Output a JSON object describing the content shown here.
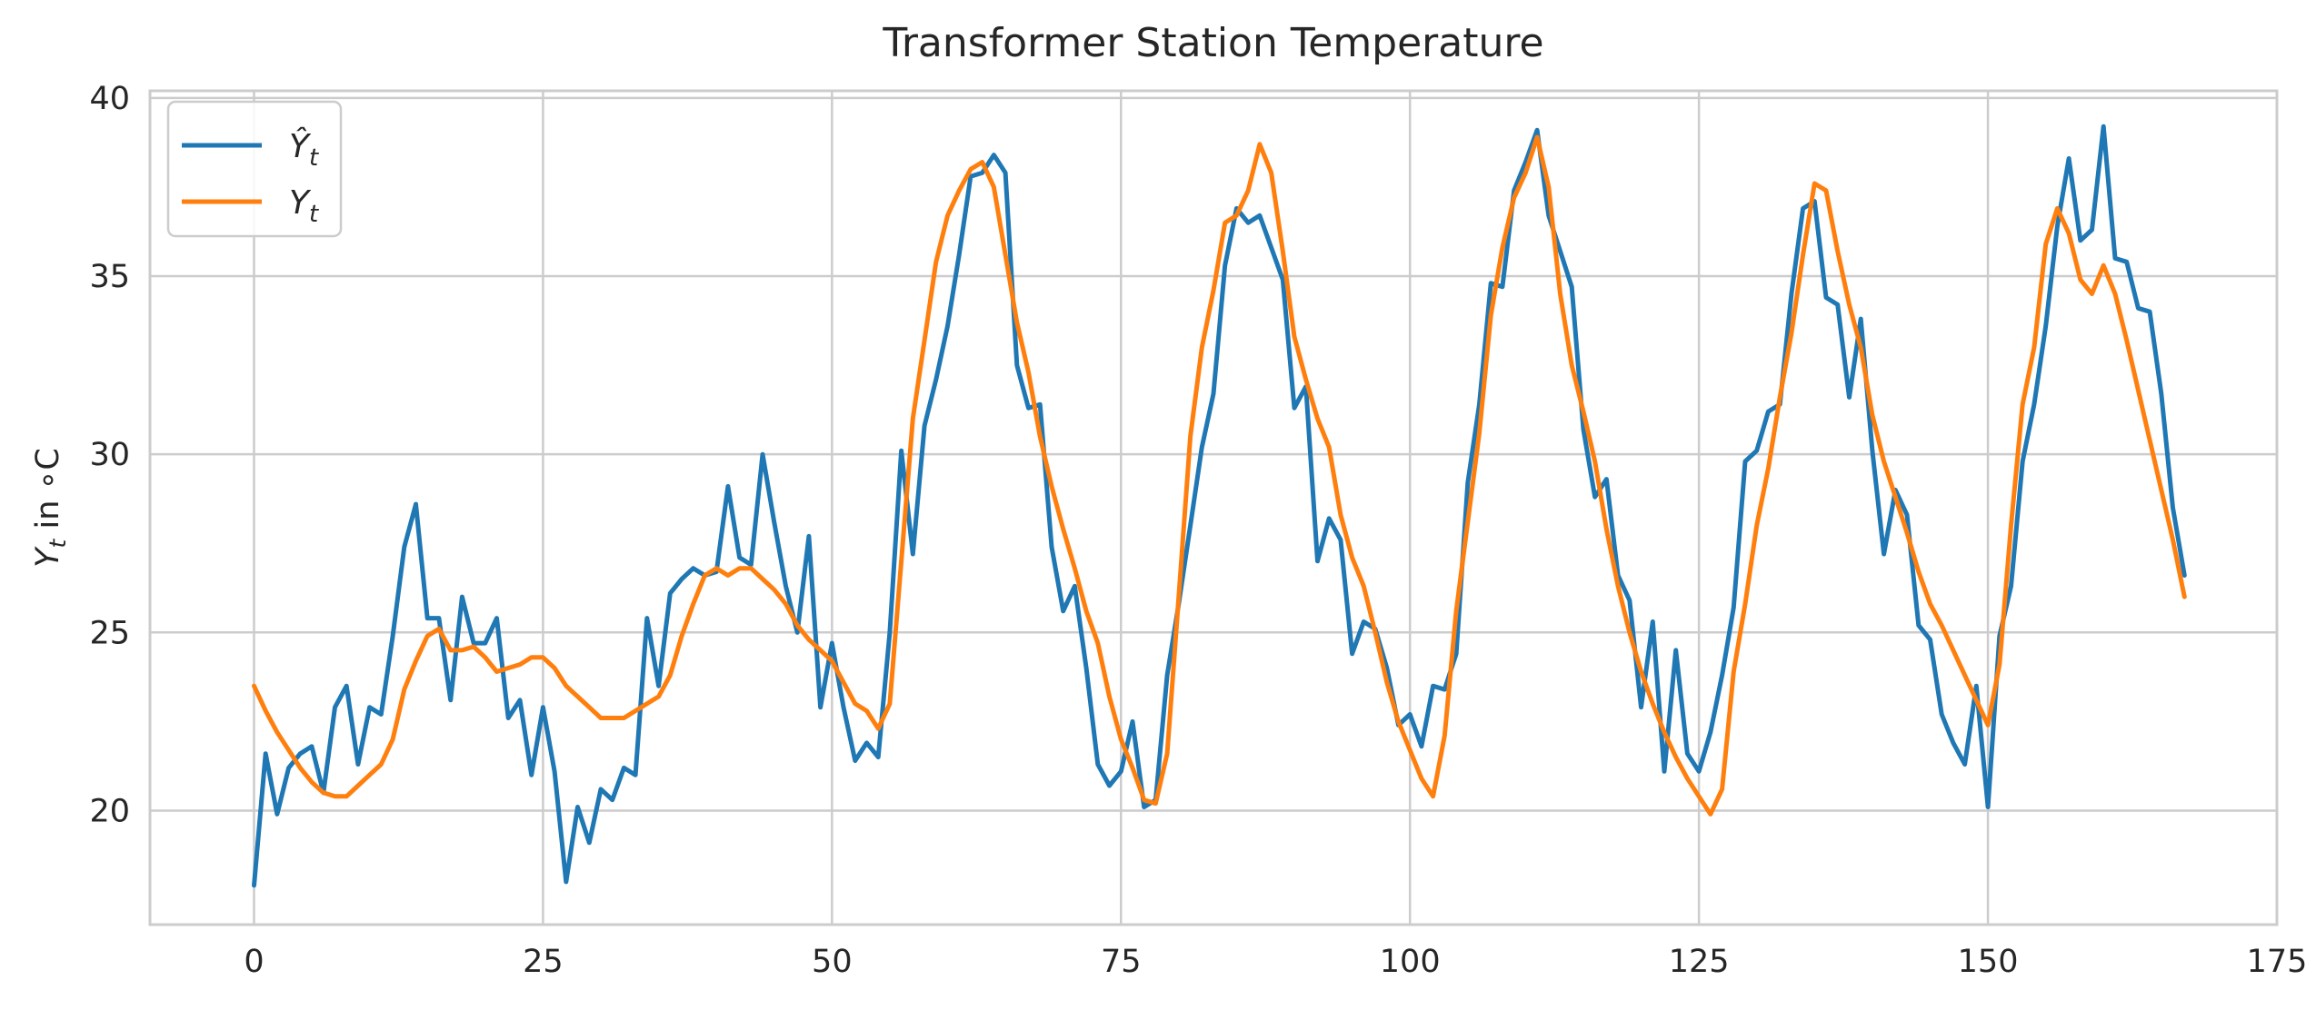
{
  "chart_data": {
    "type": "line",
    "title": "Transformer Station Temperature",
    "xlabel": "",
    "ylabel": "Yt in °C",
    "ylabel_main": "Y",
    "ylabel_sub": "t",
    "ylabel_rest": " in ∘C",
    "xlim": [
      -9,
      175
    ],
    "ylim": [
      16.8,
      40.2
    ],
    "xticks": [
      0,
      25,
      50,
      75,
      100,
      125,
      150,
      175
    ],
    "yticks": [
      20,
      25,
      30,
      35,
      40
    ],
    "grid": true,
    "legend_position": "top-left",
    "series": [
      {
        "name": "Ŷt",
        "legend_main": "Ŷ",
        "legend_sub": "t",
        "color": "#1f77b4",
        "values": [
          17.9,
          21.6,
          19.9,
          21.2,
          21.6,
          21.8,
          20.5,
          22.9,
          23.5,
          21.3,
          22.9,
          22.7,
          24.9,
          27.4,
          28.6,
          25.4,
          25.4,
          23.1,
          26.0,
          24.7,
          24.7,
          25.4,
          22.6,
          23.1,
          21.0,
          22.9,
          21.1,
          18.0,
          20.1,
          19.1,
          20.6,
          20.3,
          21.2,
          21.0,
          25.4,
          23.5,
          26.1,
          26.5,
          26.8,
          26.6,
          26.7,
          29.1,
          27.1,
          26.9,
          30.0,
          28.1,
          26.3,
          25.0,
          27.7,
          22.9,
          24.7,
          22.9,
          21.4,
          21.9,
          21.5,
          25.0,
          30.1,
          27.2,
          30.8,
          32.1,
          33.6,
          35.6,
          37.8,
          37.9,
          38.4,
          37.9,
          32.5,
          31.3,
          31.4,
          27.4,
          25.6,
          26.3,
          24.0,
          21.3,
          20.7,
          21.1,
          22.5,
          20.1,
          20.3,
          23.8,
          25.8,
          28.0,
          30.2,
          31.7,
          35.3,
          36.9,
          36.5,
          36.7,
          35.8,
          34.9,
          31.3,
          31.9,
          27.0,
          28.2,
          27.6,
          24.4,
          25.3,
          25.1,
          24.0,
          22.4,
          22.7,
          21.8,
          23.5,
          23.4,
          24.4,
          29.2,
          31.4,
          34.8,
          34.7,
          37.4,
          38.2,
          39.1,
          36.7,
          35.7,
          34.7,
          30.7,
          28.8,
          29.3,
          26.6,
          25.9,
          22.9,
          25.3,
          21.1,
          24.5,
          21.6,
          21.1,
          22.2,
          23.8,
          25.7,
          29.8,
          30.1,
          31.2,
          31.4,
          34.5,
          36.9,
          37.1,
          34.4,
          34.2,
          31.6,
          33.8,
          30.1,
          27.2,
          29.0,
          28.3,
          25.2,
          24.8,
          22.7,
          21.9,
          21.3,
          23.5,
          20.1,
          24.9,
          26.3,
          29.8,
          31.4,
          33.6,
          36.4,
          38.3,
          36.0,
          36.3,
          39.2,
          35.5,
          35.4,
          34.1,
          34.0,
          31.7,
          28.5,
          26.6
        ]
      },
      {
        "name": "Yt",
        "legend_main": "Y",
        "legend_sub": "t",
        "color": "#ff7f0e",
        "values": [
          23.5,
          22.8,
          22.2,
          21.7,
          21.2,
          20.8,
          20.5,
          20.4,
          20.4,
          20.7,
          21.0,
          21.3,
          22.0,
          23.4,
          24.2,
          24.9,
          25.1,
          24.5,
          24.5,
          24.6,
          24.3,
          23.9,
          24.0,
          24.1,
          24.3,
          24.3,
          24.0,
          23.5,
          23.2,
          22.9,
          22.6,
          22.6,
          22.6,
          22.8,
          23.0,
          23.2,
          23.8,
          24.9,
          25.8,
          26.6,
          26.8,
          26.6,
          26.8,
          26.8,
          26.5,
          26.2,
          25.8,
          25.2,
          24.8,
          24.5,
          24.2,
          23.6,
          23.0,
          22.8,
          22.3,
          23.0,
          27.0,
          31.0,
          33.2,
          35.4,
          36.7,
          37.4,
          38.0,
          38.2,
          37.5,
          35.6,
          33.7,
          32.3,
          30.5,
          29.1,
          27.9,
          26.8,
          25.6,
          24.7,
          23.2,
          22.0,
          21.2,
          20.3,
          20.2,
          21.6,
          26.0,
          30.5,
          33.0,
          34.6,
          36.5,
          36.7,
          37.4,
          38.7,
          37.9,
          35.7,
          33.3,
          32.1,
          31.0,
          30.2,
          28.3,
          27.1,
          26.3,
          25.0,
          23.6,
          22.5,
          21.7,
          20.9,
          20.4,
          22.1,
          25.6,
          28.1,
          30.6,
          33.9,
          35.8,
          37.2,
          37.9,
          38.9,
          37.5,
          34.5,
          32.5,
          31.2,
          29.8,
          27.9,
          26.3,
          25.0,
          23.9,
          23.0,
          22.2,
          21.5,
          20.9,
          20.4,
          19.9,
          20.6,
          23.9,
          25.8,
          28.0,
          29.6,
          31.6,
          33.4,
          35.6,
          37.6,
          37.4,
          35.7,
          34.2,
          33.0,
          31.1,
          29.8,
          28.8,
          27.8,
          26.7,
          25.8,
          25.2,
          24.5,
          23.8,
          23.1,
          22.4,
          24.1,
          28.0,
          31.4,
          33.0,
          35.9,
          36.9,
          36.2,
          34.9,
          34.5,
          35.3,
          34.5,
          33.2,
          31.8,
          30.4,
          29.0,
          27.6,
          26.0
        ]
      }
    ]
  }
}
